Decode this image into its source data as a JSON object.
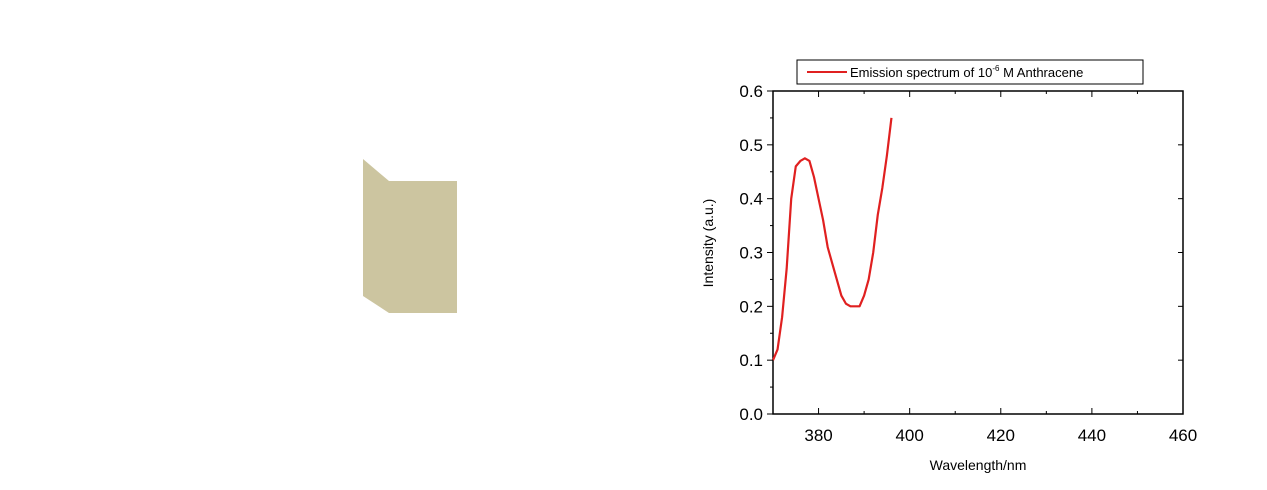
{
  "decor": {
    "shape": "tan-folded-panel",
    "color": "#ccc5a0"
  },
  "chart_data": {
    "type": "line",
    "title": "",
    "xlabel": "Wavelength/nm",
    "ylabel": "Intensity (a.u.)",
    "xlim": [
      370,
      460
    ],
    "ylim": [
      0.0,
      0.6
    ],
    "xticks": [
      380,
      400,
      420,
      440,
      460
    ],
    "yticks": [
      0.0,
      0.1,
      0.2,
      0.3,
      0.4,
      0.5,
      0.6
    ],
    "ytick_labels": [
      "0.0",
      "0.1",
      "0.2",
      "0.3",
      "0.4",
      "0.5",
      "0.6"
    ],
    "grid": false,
    "legend_position": "top",
    "series": [
      {
        "name": "Emission spectrum of 10-6 M Anthracene",
        "legend_base": "Emission spectrum of 10",
        "legend_superscript": "-6",
        "legend_suffix": " M Anthracene",
        "color": "#e02020",
        "x": [
          370,
          371,
          372,
          373,
          374,
          375,
          376,
          377,
          378,
          379,
          380,
          381,
          382,
          383,
          384,
          385,
          386,
          387,
          388,
          389,
          390,
          391,
          392,
          393,
          394,
          395,
          396
        ],
        "y": [
          0.1,
          0.12,
          0.18,
          0.27,
          0.4,
          0.46,
          0.47,
          0.475,
          0.47,
          0.44,
          0.4,
          0.36,
          0.31,
          0.28,
          0.25,
          0.22,
          0.205,
          0.2,
          0.2,
          0.2,
          0.22,
          0.25,
          0.3,
          0.37,
          0.42,
          0.48,
          0.55
        ]
      }
    ]
  }
}
